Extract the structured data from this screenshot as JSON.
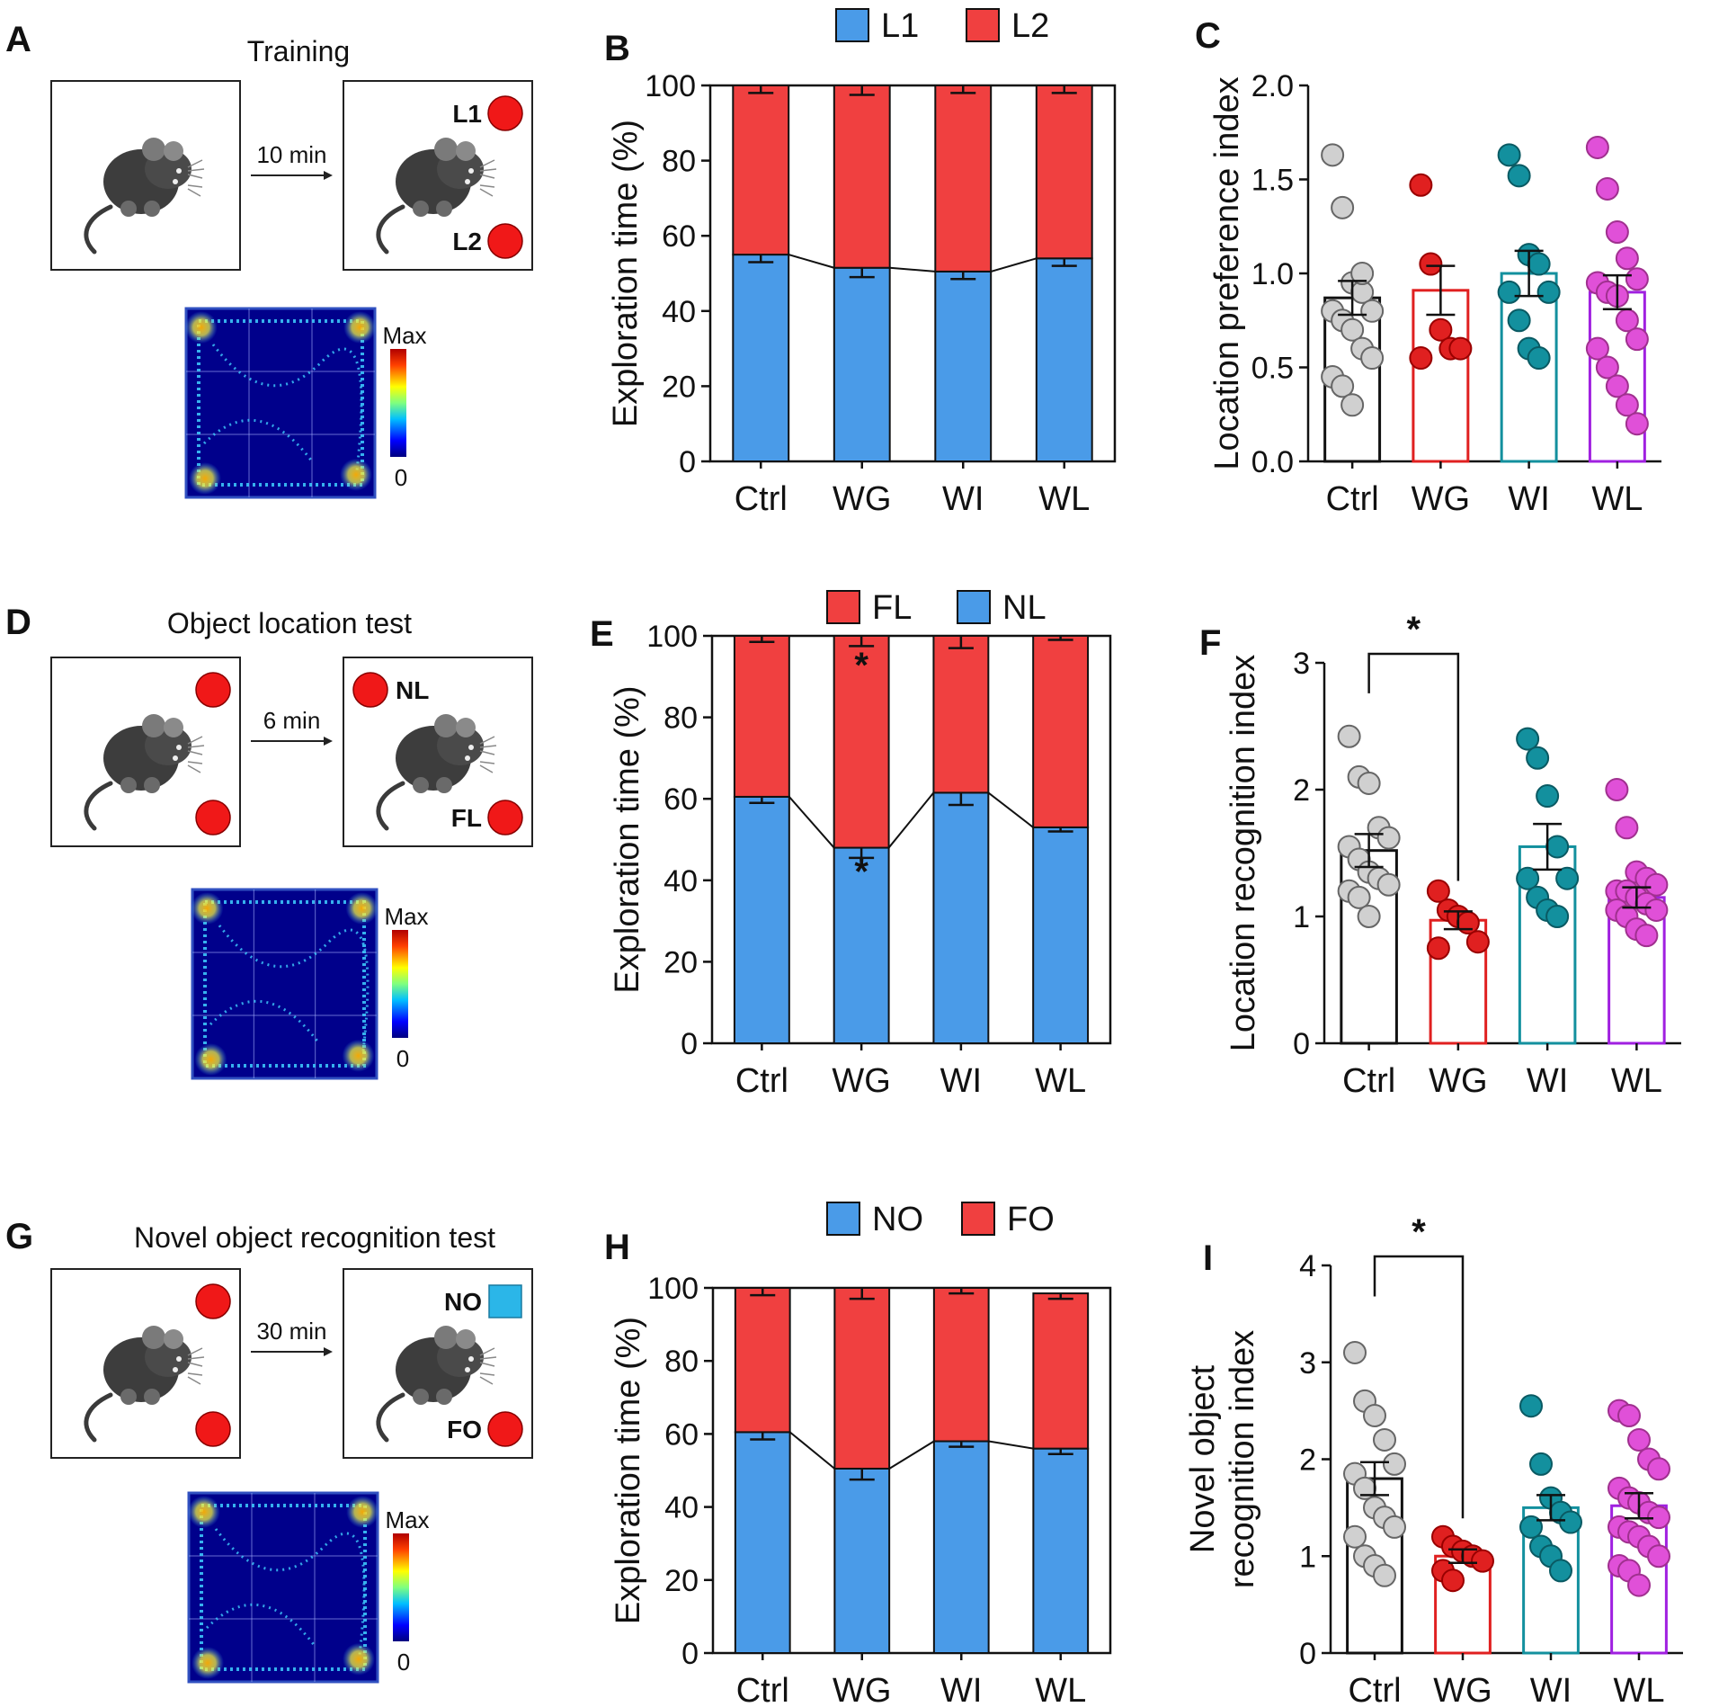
{
  "colors": {
    "blue": "#4A9BE8",
    "red": "#F04040",
    "ctrl_pt": "#D0D0D0",
    "wg": "#E02020",
    "wi": "#13909E",
    "wl": "#E050D8",
    "wl_edge": "#A020E0",
    "heatmap_bg": "#00008B"
  },
  "schematics": [
    {
      "letter": "A",
      "title": "Training",
      "interval": "10 min",
      "left_objects": [],
      "right_objects": [
        {
          "label": "L1",
          "shape": "circle"
        },
        {
          "label": "L2",
          "shape": "circle"
        }
      ],
      "heatmap": {
        "max_label": "Max",
        "min_label": "0"
      }
    },
    {
      "letter": "D",
      "title": "Object location test",
      "interval": "6 min",
      "left_objects": [
        {
          "shape": "circle"
        },
        {
          "shape": "circle"
        }
      ],
      "right_objects": [
        {
          "label": "NL",
          "shape": "circle"
        },
        {
          "label": "FL",
          "shape": "circle"
        }
      ],
      "heatmap": {
        "max_label": "Max",
        "min_label": "0"
      }
    },
    {
      "letter": "G",
      "title": "Novel object recognition test",
      "interval": "30 min",
      "left_objects": [
        {
          "shape": "circle"
        },
        {
          "shape": "circle"
        }
      ],
      "right_objects": [
        {
          "label": "NO",
          "shape": "square"
        },
        {
          "label": "FO",
          "shape": "circle"
        }
      ],
      "heatmap": {
        "max_label": "Max",
        "min_label": "0"
      }
    }
  ],
  "chart_data": [
    {
      "letter": "B",
      "type": "bar",
      "stacked": true,
      "categories": [
        "Ctrl",
        "WG",
        "WI",
        "WL"
      ],
      "ylabel": "Exploration time (%)",
      "ylim": [
        0,
        100
      ],
      "yticks": [
        0,
        20,
        40,
        60,
        80,
        100
      ],
      "legend": [
        {
          "name": "L1",
          "color": "blue"
        },
        {
          "name": "L2",
          "color": "red"
        }
      ],
      "series": [
        {
          "name": "L1",
          "color": "blue",
          "values": [
            55,
            51.5,
            50.5,
            54
          ],
          "errors": [
            2,
            2.5,
            2,
            2
          ]
        },
        {
          "name": "L2",
          "color": "red",
          "values": [
            45,
            48.5,
            49.5,
            46
          ],
          "errors": [
            2,
            2.5,
            2,
            2
          ]
        }
      ],
      "significance": []
    },
    {
      "letter": "C",
      "type": "bar_scatter",
      "categories": [
        "Ctrl",
        "WG",
        "WI",
        "WL"
      ],
      "ylabel": "Location preference index",
      "ylim": [
        0,
        2.0
      ],
      "yticks": [
        "0.0",
        "0.5",
        "1.0",
        "1.5",
        "2.0"
      ],
      "means": [
        0.87,
        0.91,
        1.0,
        0.9
      ],
      "sems": [
        0.09,
        0.13,
        0.12,
        0.09
      ],
      "points": [
        [
          1.63,
          1.35,
          0.95,
          0.9,
          0.8,
          0.8,
          0.75,
          0.7,
          0.6,
          0.55,
          0.45,
          0.4,
          0.3,
          1.0
        ],
        [
          1.47,
          1.05,
          0.7,
          0.6,
          0.6,
          0.55
        ],
        [
          1.63,
          1.52,
          1.1,
          1.05,
          0.9,
          0.9,
          0.75,
          0.6,
          0.55
        ],
        [
          1.67,
          1.45,
          1.22,
          1.08,
          0.97,
          0.95,
          0.9,
          0.88,
          0.75,
          0.65,
          0.6,
          0.5,
          0.4,
          0.3,
          0.2
        ]
      ],
      "significance": []
    },
    {
      "letter": "E",
      "type": "bar",
      "stacked": true,
      "categories": [
        "Ctrl",
        "WG",
        "WI",
        "WL"
      ],
      "ylabel": "Exploration time (%)",
      "ylim": [
        0,
        100
      ],
      "yticks": [
        0,
        20,
        40,
        60,
        80,
        100
      ],
      "legend": [
        {
          "name": "FL",
          "color": "red"
        },
        {
          "name": "NL",
          "color": "blue"
        }
      ],
      "series": [
        {
          "name": "NL",
          "color": "blue",
          "values": [
            60.5,
            48,
            61.5,
            53
          ],
          "errors": [
            1.5,
            2.5,
            3,
            1
          ]
        },
        {
          "name": "FL",
          "color": "red",
          "values": [
            39.5,
            52,
            38.5,
            47
          ],
          "errors": [
            1.5,
            2.5,
            3,
            1
          ]
        }
      ],
      "significance": [
        {
          "category": "WG",
          "label": "*"
        }
      ]
    },
    {
      "letter": "F",
      "type": "bar_scatter",
      "categories": [
        "Ctrl",
        "WG",
        "WI",
        "WL"
      ],
      "ylabel": "Location recognition index",
      "ylim": [
        0,
        3
      ],
      "yticks": [
        "0",
        "1",
        "2",
        "3"
      ],
      "means": [
        1.52,
        0.97,
        1.55,
        1.15
      ],
      "sems": [
        0.13,
        0.07,
        0.18,
        0.08
      ],
      "points": [
        [
          2.42,
          2.1,
          2.05,
          1.7,
          1.62,
          1.55,
          1.45,
          1.35,
          1.3,
          1.25,
          1.2,
          1.15,
          1.0
        ],
        [
          1.2,
          1.05,
          1.0,
          0.95,
          0.8,
          0.75
        ],
        [
          2.4,
          2.25,
          1.95,
          1.55,
          1.3,
          1.3,
          1.15,
          1.05,
          1.0
        ],
        [
          2.0,
          1.7,
          1.35,
          1.3,
          1.25,
          1.2,
          1.2,
          1.15,
          1.1,
          1.05,
          1.05,
          1.0,
          0.9,
          0.85
        ]
      ],
      "significance": [
        {
          "from": "Ctrl",
          "to": "WG",
          "label": "*"
        }
      ]
    },
    {
      "letter": "H",
      "type": "bar",
      "stacked": true,
      "categories": [
        "Ctrl",
        "WG",
        "WI",
        "WL"
      ],
      "ylabel": "Exploration time (%)",
      "ylim": [
        0,
        100
      ],
      "yticks": [
        0,
        20,
        40,
        60,
        80,
        100
      ],
      "legend": [
        {
          "name": "NO",
          "color": "blue"
        },
        {
          "name": "FO",
          "color": "red"
        }
      ],
      "series": [
        {
          "name": "NO",
          "color": "blue",
          "values": [
            60.5,
            50.5,
            58,
            56
          ],
          "errors": [
            2,
            3,
            1.5,
            1.5
          ]
        },
        {
          "name": "FO",
          "color": "red",
          "values": [
            39.5,
            49.5,
            42,
            42.5
          ],
          "errors": [
            2,
            3,
            1.5,
            1.5
          ]
        }
      ],
      "significance": []
    },
    {
      "letter": "I",
      "type": "bar_scatter",
      "categories": [
        "Ctrl",
        "WG",
        "WI",
        "WL"
      ],
      "ylabel": [
        "Novel object",
        "recognition index"
      ],
      "ylim": [
        0,
        4
      ],
      "yticks": [
        "0",
        "1",
        "2",
        "3",
        "4"
      ],
      "means": [
        1.8,
        1.0,
        1.5,
        1.52
      ],
      "sems": [
        0.17,
        0.07,
        0.13,
        0.13
      ],
      "points": [
        [
          3.1,
          2.6,
          2.45,
          2.2,
          1.95,
          1.85,
          1.7,
          1.5,
          1.4,
          1.3,
          1.2,
          1.0,
          0.9,
          0.8
        ],
        [
          1.2,
          1.1,
          1.05,
          1.0,
          0.95,
          0.85,
          0.75
        ],
        [
          2.55,
          1.95,
          1.6,
          1.45,
          1.35,
          1.3,
          1.1,
          1.0,
          0.85
        ],
        [
          2.5,
          2.45,
          2.2,
          2.0,
          1.9,
          1.7,
          1.6,
          1.55,
          1.45,
          1.4,
          1.3,
          1.25,
          1.2,
          1.1,
          1.0,
          0.9,
          0.85,
          0.7
        ]
      ],
      "significance": [
        {
          "from": "Ctrl",
          "to": "WG",
          "label": "*"
        }
      ]
    }
  ]
}
